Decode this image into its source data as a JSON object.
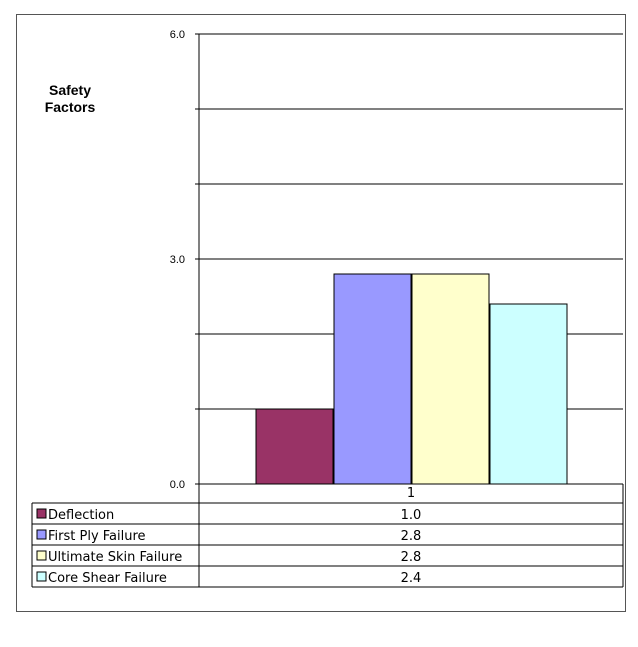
{
  "chart_data": {
    "type": "bar",
    "ylabel": "Safety\nFactors",
    "ylim": [
      0,
      6
    ],
    "yticks_labeled": [
      "0.0",
      "3.0",
      "6.0"
    ],
    "grid": true,
    "categories": [
      "1"
    ],
    "legend_placement": "table-below",
    "series": [
      {
        "name": "Deflection",
        "values": [
          1.0
        ],
        "label": "1.0",
        "color": "#993366"
      },
      {
        "name": "First Ply Failure",
        "values": [
          2.8
        ],
        "label": "2.8",
        "color": "#9999ff"
      },
      {
        "name": "Ultimate Skin Failure",
        "values": [
          2.8
        ],
        "label": "2.8",
        "color": "#ffffcc"
      },
      {
        "name": "Core Shear Failure",
        "values": [
          2.4
        ],
        "label": "2.4",
        "color": "#ccffff"
      }
    ]
  }
}
